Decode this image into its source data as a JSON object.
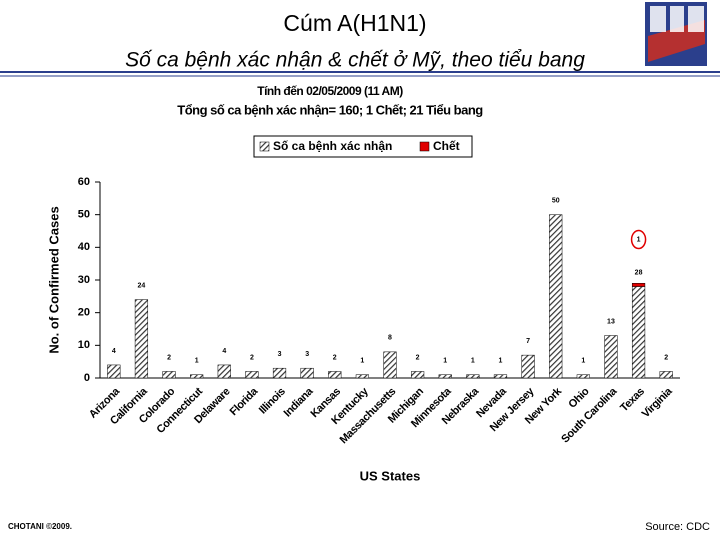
{
  "chart_data": {
    "type": "bar",
    "stacked": true,
    "title": "Cúm A(H1N1)",
    "subtitle": "Số ca bệnh xác nhận & chết ở Mỹ, theo tiểu bang",
    "date_note": "Tính đến 02/05/2009 (11 AM)",
    "summary": "Tổng số ca bệnh xác nhận= 160; 1 Chết; 21 Tiểu bang",
    "x_label": "US States",
    "y_label": "No. of Confirmed Cases",
    "footer_left": "CHOTANI ©2009.",
    "footer_right": "Source: CDC",
    "categories": [
      "Arizona",
      "California",
      "Colorado",
      "Connecticut",
      "Delaware",
      "Florida",
      "Illinois",
      "Indiana",
      "Kansas",
      "Kentucky",
      "Massachusetts",
      "Michigan",
      "Minnesota",
      "Nebraska",
      "Nevada",
      "New Jersey",
      "New York",
      "Ohio",
      "South Carolina",
      "Texas",
      "Virginia"
    ],
    "series": [
      {
        "name": "Số ca bệnh xác nhận",
        "color": "#555555",
        "values": [
          4,
          24,
          2,
          1,
          4,
          2,
          3,
          3,
          2,
          1,
          8,
          2,
          1,
          1,
          1,
          7,
          50,
          1,
          13,
          28,
          2
        ]
      },
      {
        "name": "Chết",
        "color": "#e00000",
        "values": [
          null,
          null,
          null,
          null,
          null,
          null,
          null,
          null,
          null,
          null,
          null,
          null,
          null,
          null,
          null,
          null,
          null,
          null,
          null,
          1,
          null
        ]
      }
    ],
    "ylim": [
      0,
      60
    ],
    "yticks": [
      0,
      10,
      20,
      30,
      40,
      50,
      60
    ]
  }
}
